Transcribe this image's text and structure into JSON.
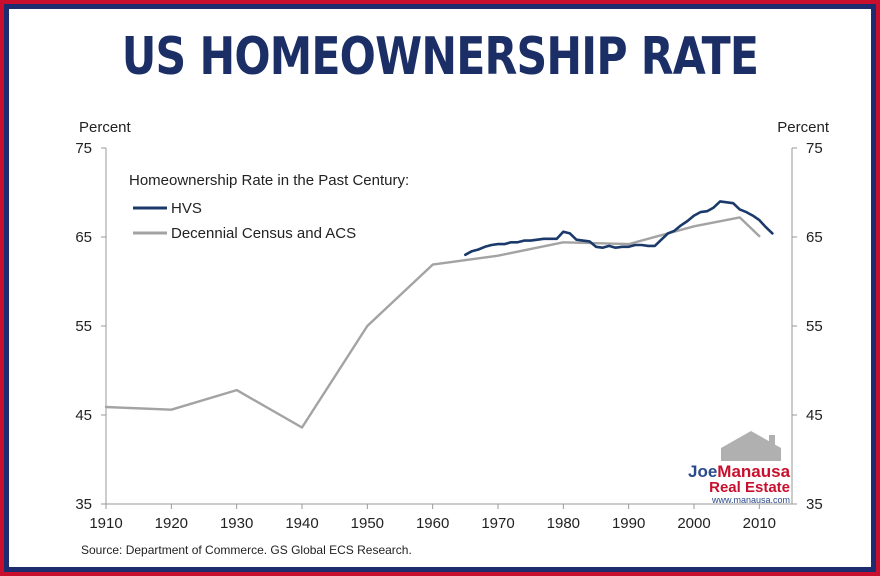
{
  "header": {
    "title": "US HOMEOWNERSHIP RATE"
  },
  "chart_data": {
    "type": "line",
    "title": "US HOMEOWNERSHIP RATE",
    "ylabel_left": "Percent",
    "ylabel_right": "Percent",
    "ylim": [
      35,
      75
    ],
    "xlim": [
      1910,
      2015
    ],
    "x_ticks": [
      "1910",
      "1920",
      "1930",
      "1940",
      "1950",
      "1960",
      "1970",
      "1980",
      "1990",
      "2000",
      "2010"
    ],
    "y_ticks": [
      "35",
      "45",
      "55",
      "65",
      "75"
    ],
    "legend_title": "Homeownership Rate in the Past Century:",
    "legend_position": "top-left",
    "grid": false,
    "series": [
      {
        "name": "HVS",
        "color": "#1b3a6b",
        "x": [
          1965,
          1966,
          1967,
          1968,
          1969,
          1970,
          1971,
          1972,
          1973,
          1974,
          1975,
          1976,
          1977,
          1978,
          1979,
          1980,
          1981,
          1982,
          1983,
          1984,
          1985,
          1986,
          1987,
          1988,
          1989,
          1990,
          1991,
          1992,
          1993,
          1994,
          1995,
          1996,
          1997,
          1998,
          1999,
          2000,
          2001,
          2002,
          2003,
          2004,
          2005,
          2006,
          2007,
          2008,
          2009,
          2010,
          2011,
          2012
        ],
        "y": [
          63.0,
          63.4,
          63.6,
          63.9,
          64.1,
          64.2,
          64.2,
          64.4,
          64.4,
          64.6,
          64.6,
          64.7,
          64.8,
          64.8,
          64.8,
          65.6,
          65.4,
          64.7,
          64.6,
          64.5,
          63.9,
          63.8,
          64.0,
          63.8,
          63.9,
          63.9,
          64.1,
          64.1,
          64.0,
          64.0,
          64.7,
          65.4,
          65.7,
          66.3,
          66.8,
          67.4,
          67.8,
          67.9,
          68.3,
          69.0,
          68.9,
          68.8,
          68.1,
          67.8,
          67.4,
          66.9,
          66.1,
          65.4
        ]
      },
      {
        "name": "Decennial Census and ACS",
        "color": "#a3a3a3",
        "x": [
          1910,
          1920,
          1930,
          1940,
          1950,
          1960,
          1970,
          1980,
          1990,
          2000,
          2007,
          2010
        ],
        "y": [
          45.9,
          45.6,
          47.8,
          43.6,
          55.0,
          61.9,
          62.9,
          64.4,
          64.2,
          66.2,
          67.2,
          65.1
        ]
      }
    ],
    "source": "Source: Department of Commerce. GS Global ECS Research."
  },
  "logo": {
    "first": "Joe",
    "last": "Manausa",
    "subtitle": "Real Estate",
    "url": "www.manausa.com"
  }
}
